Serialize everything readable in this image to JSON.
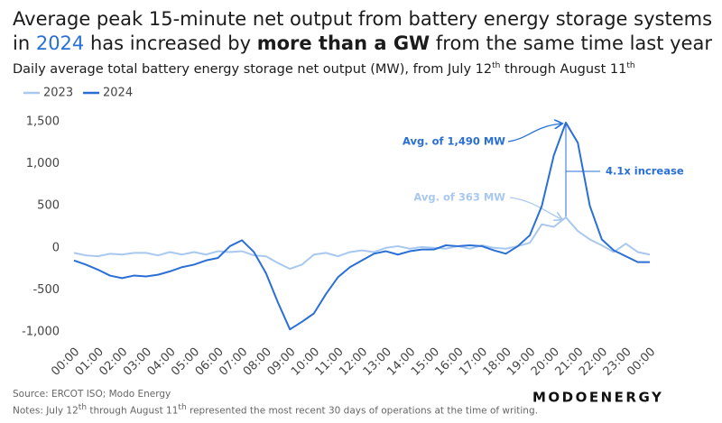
{
  "chart_data": {
    "type": "line",
    "title": [
      "Average peak 15-minute net output from battery energy storage systems in ",
      "2024",
      " has increased by ",
      "more than a GW",
      " from the same time last year"
    ],
    "subtitle": [
      "Daily average total battery energy storage net output (MW), from July 12",
      "th",
      " through August 11",
      "th"
    ],
    "categories": [
      "00:00",
      null,
      "01:00",
      null,
      "02:00",
      null,
      "03:00",
      null,
      "04:00",
      null,
      "05:00",
      null,
      "06:00",
      null,
      "07:00",
      null,
      "08:00",
      null,
      "09:00",
      null,
      "10:00",
      null,
      "11:00",
      null,
      "12:00",
      null,
      "13:00",
      null,
      "14:00",
      null,
      "15:00",
      null,
      "16:00",
      null,
      "17:00",
      null,
      "18:00",
      null,
      "19:00",
      null,
      "20:00",
      null,
      "21:00",
      null,
      "22:00",
      null,
      "23:00",
      null,
      "00:00"
    ],
    "series": [
      {
        "name": "2023",
        "color": "#a9c8ef",
        "values": [
          -60,
          -90,
          -100,
          -70,
          -80,
          -60,
          -60,
          -90,
          -50,
          -80,
          -50,
          -80,
          -40,
          -50,
          -40,
          -90,
          -100,
          -180,
          -250,
          -200,
          -80,
          -60,
          -100,
          -50,
          -30,
          -50,
          0,
          20,
          -10,
          10,
          0,
          -10,
          20,
          -10,
          30,
          0,
          -10,
          20,
          60,
          280,
          250,
          363,
          200,
          100,
          30,
          -50,
          50,
          -50,
          -80
        ]
      },
      {
        "name": "2024",
        "color": "#2a6fd6",
        "values": [
          -150,
          -200,
          -260,
          -330,
          -360,
          -330,
          -340,
          -320,
          -280,
          -230,
          -200,
          -150,
          -120,
          20,
          90,
          -50,
          -300,
          -650,
          -970,
          -880,
          -780,
          -550,
          -350,
          -230,
          -150,
          -70,
          -40,
          -80,
          -40,
          -20,
          -20,
          30,
          20,
          30,
          20,
          -30,
          -70,
          20,
          150,
          500,
          1100,
          1490,
          1250,
          500,
          100,
          -30,
          -100,
          -170,
          -170
        ]
      }
    ],
    "ylim": [
      -1000,
      1500
    ],
    "yticks": [
      {
        "value": -1000,
        "label": "-1,000"
      },
      -500,
      0,
      500,
      {
        "value": 1000,
        "label": "1,000"
      },
      {
        "value": 1500,
        "label": "1,500"
      }
    ],
    "grid": false,
    "annotations": [
      "Avg. of 1,490 MW",
      "Avg. of 363 MW",
      "4.1x increase"
    ],
    "source": "Source: ERCOT ISO; Modo Energy",
    "notes": [
      "Notes: July 12",
      "th",
      " through August 11",
      "th",
      " represented the most recent 30 days of operations at the time of writing."
    ],
    "logo": "MODOENERGY"
  }
}
